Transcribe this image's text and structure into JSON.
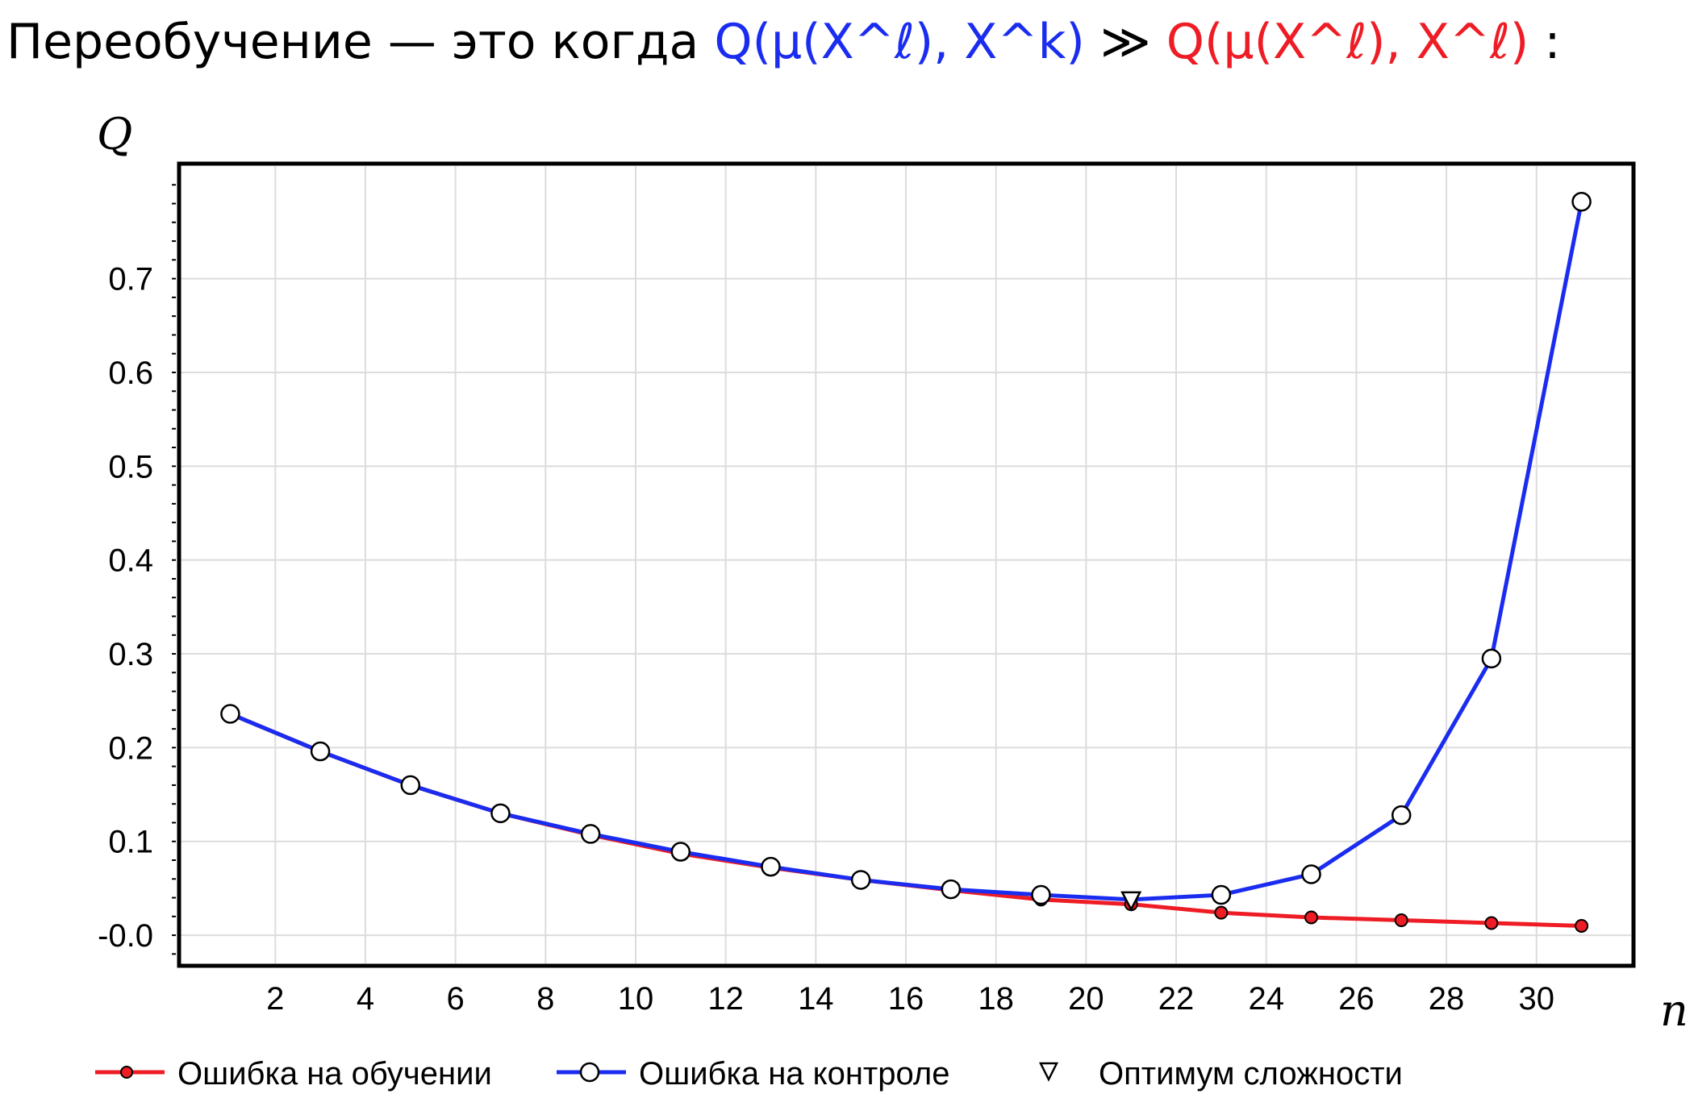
{
  "heading": {
    "prefix": "Переобучение — это когда ",
    "lhs": "Q(μ(X^ℓ), X^k)",
    "op": " ≫ ",
    "rhs": "Q(μ(X^ℓ), X^ℓ)",
    "suffix": ":",
    "colors": {
      "lhs": "#1a2cf0",
      "rhs": "#ee1c25",
      "text": "#000000"
    }
  },
  "chart_data": {
    "type": "line",
    "ylabel": "Q",
    "xlabel": "n",
    "xlim": [
      -0.1,
      32.1
    ],
    "ylim": [
      -0.03,
      0.82
    ],
    "xticks": [
      2,
      4,
      6,
      8,
      10,
      12,
      14,
      16,
      18,
      20,
      22,
      24,
      26,
      28,
      30
    ],
    "yticks": [
      0.0,
      0.1,
      0.2,
      0.3,
      0.4,
      0.5,
      0.6,
      0.7
    ],
    "ytick_labels": [
      "-0.0",
      "0.1",
      "0.2",
      "0.3",
      "0.4",
      "0.5",
      "0.6",
      "0.7"
    ],
    "grid": true,
    "legend_position": "bottom",
    "x": [
      1,
      3,
      5,
      7,
      9,
      11,
      13,
      15,
      17,
      19,
      21,
      23,
      25,
      27,
      29,
      31
    ],
    "series": [
      {
        "name": "Ошибка на обучении",
        "color": "#ee1c25",
        "marker": "filled-circle",
        "values": [
          0.236,
          0.196,
          0.16,
          0.13,
          0.107,
          0.087,
          0.072,
          0.059,
          0.048,
          0.038,
          0.033,
          0.024,
          0.019,
          0.016,
          0.013,
          0.01
        ]
      },
      {
        "name": "Ошибка на контроле",
        "color": "#1a2cf0",
        "marker": "open-circle",
        "values": [
          0.236,
          0.196,
          0.16,
          0.13,
          0.108,
          0.089,
          0.073,
          0.059,
          0.049,
          0.043,
          0.038,
          0.043,
          0.065,
          0.128,
          0.295,
          0.782
        ]
      }
    ],
    "optimum": {
      "name": "Оптимум сложности",
      "x": 21,
      "y": 0.038,
      "marker": "open-triangle-down"
    }
  }
}
